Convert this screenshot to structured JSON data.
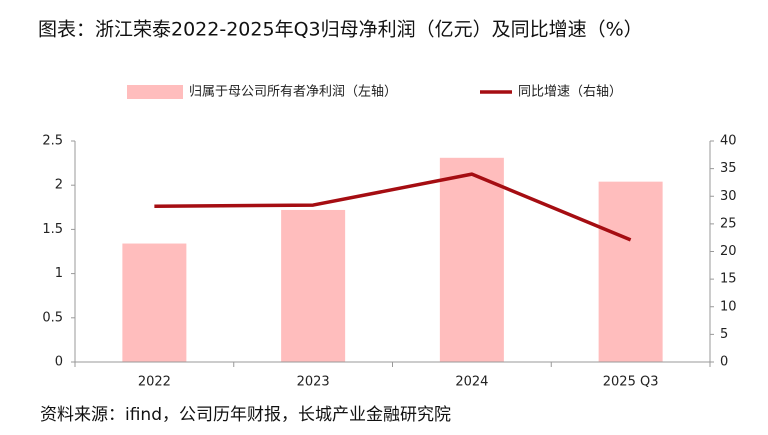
{
  "chart_data": {
    "type": "combo",
    "title": "图表：浙江荣泰2022-2025年Q3归母净利润（亿元）及同比增速（%）",
    "source": "资料来源：ifind，公司历年财报，长城产业金融研究院",
    "categories": [
      "2022",
      "2023",
      "2024",
      "2025 Q3"
    ],
    "series": [
      {
        "name": "归属于母公司所有者净利润（左轴）",
        "type": "bar",
        "color": "#ffbdbd",
        "values": [
          1.34,
          1.72,
          2.31,
          2.04
        ]
      },
      {
        "name": "同比增速（右轴）",
        "type": "line",
        "axis": "y2",
        "color": "#a50d12",
        "values": [
          28.2,
          28.4,
          34.0,
          22.1
        ]
      }
    ],
    "ylim": [
      0,
      2.5
    ],
    "yticks": [
      0,
      0.5,
      1,
      1.5,
      2,
      2.5
    ],
    "y2lim": [
      0,
      40
    ],
    "y2ticks": [
      0,
      5,
      10,
      15,
      20,
      25,
      30,
      35,
      40
    ],
    "legend": "top",
    "grid": false
  }
}
